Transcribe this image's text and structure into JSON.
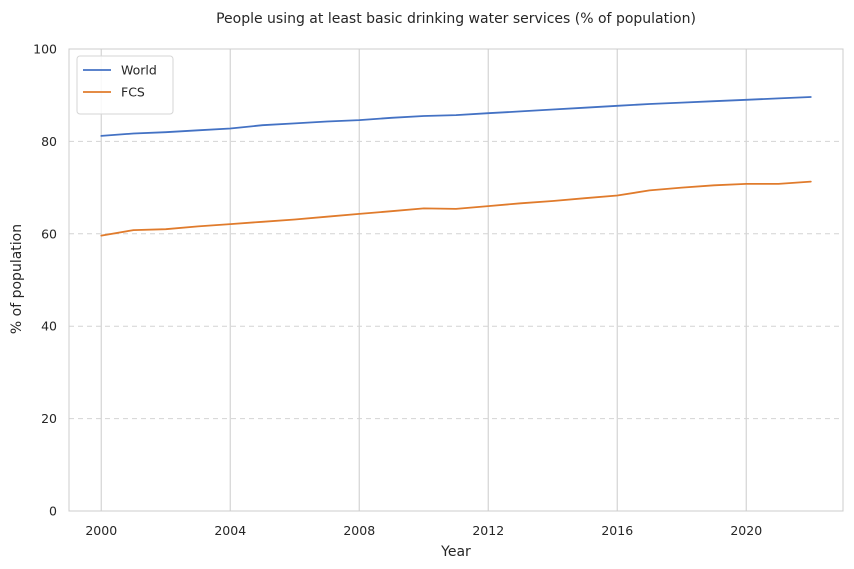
{
  "chart_data": {
    "type": "line",
    "title": "People using at least basic drinking water services (% of population)",
    "xlabel": "Year",
    "ylabel": "% of population",
    "xlim": [
      1999,
      2023
    ],
    "ylim": [
      0,
      100
    ],
    "xticks": [
      2000,
      2004,
      2008,
      2012,
      2016,
      2020
    ],
    "yticks": [
      0,
      20,
      40,
      60,
      80,
      100
    ],
    "grid": {
      "vertical": "solid",
      "horizontal": "dashed"
    },
    "legend_position": "top-left",
    "x": [
      2000,
      2001,
      2002,
      2003,
      2004,
      2005,
      2006,
      2007,
      2008,
      2009,
      2010,
      2011,
      2012,
      2013,
      2014,
      2015,
      2016,
      2017,
      2018,
      2019,
      2020,
      2021,
      2022
    ],
    "series": [
      {
        "name": "World",
        "color": "#4472c4",
        "values": [
          81.2,
          81.7,
          82.0,
          82.4,
          82.8,
          83.5,
          83.9,
          84.3,
          84.6,
          85.1,
          85.5,
          85.7,
          86.1,
          86.5,
          86.9,
          87.3,
          87.7,
          88.1,
          88.4,
          88.7,
          89.0,
          89.3,
          89.6
        ]
      },
      {
        "name": "FCS",
        "color": "#e07b2c",
        "values": [
          59.6,
          60.8,
          61.0,
          61.6,
          62.1,
          62.6,
          63.1,
          63.7,
          64.3,
          64.9,
          65.5,
          65.4,
          66.0,
          66.6,
          67.1,
          67.7,
          68.3,
          69.4,
          70.0,
          70.5,
          70.8,
          70.8,
          71.3
        ]
      }
    ]
  }
}
